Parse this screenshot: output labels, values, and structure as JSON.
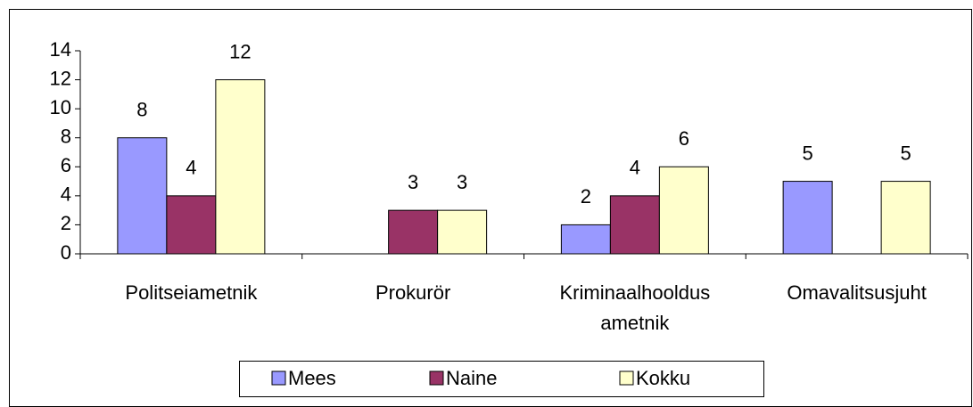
{
  "chart_data": {
    "type": "bar",
    "categories": [
      "Politseiametnik",
      "Prokurör",
      "Kriminaalhooldus ametnik",
      "Omavalitsusjuht"
    ],
    "series": [
      {
        "name": "Mees",
        "color": "#9999ff",
        "values": [
          8,
          null,
          2,
          5
        ]
      },
      {
        "name": "Naine",
        "color": "#993366",
        "values": [
          4,
          3,
          4,
          null
        ]
      },
      {
        "name": "Kokku",
        "color": "#ffffcc",
        "values": [
          12,
          3,
          6,
          5
        ]
      }
    ],
    "ylim": [
      0,
      14
    ],
    "yticks": [
      0,
      2,
      4,
      6,
      8,
      10,
      12,
      14
    ],
    "grid": false,
    "legend": "bottom"
  }
}
